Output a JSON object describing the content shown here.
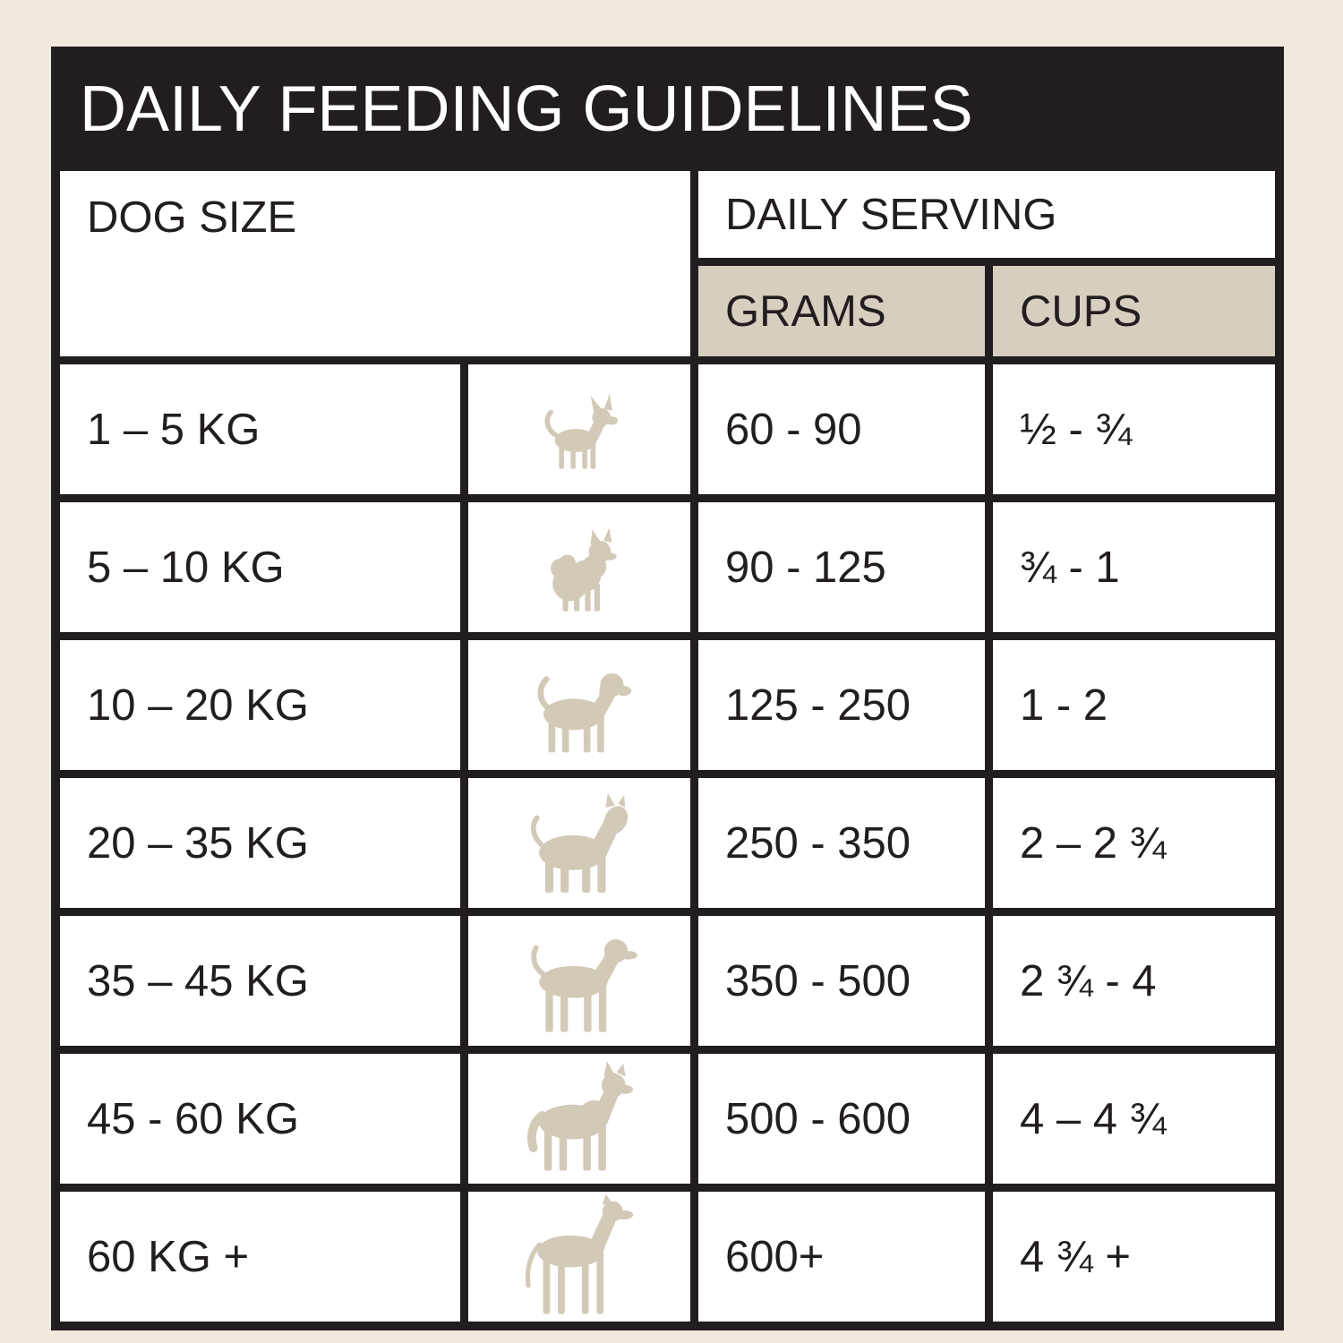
{
  "title": "DAILY FEEDING GUIDELINES",
  "columns": {
    "dog_size": "DOG SIZE",
    "daily_serving": "DAILY SERVING",
    "grams": "GRAMS",
    "cups": "CUPS"
  },
  "table": {
    "rows": [
      {
        "size": "1 – 5 KG",
        "icon": "chihuahua-dog-icon",
        "grams": "60 - 90",
        "cups": "½ - ¾"
      },
      {
        "size": "5 – 10 KG",
        "icon": "pomeranian-dog-icon",
        "grams": "90 - 125",
        "cups": "¾ - 1"
      },
      {
        "size": "10 – 20 KG",
        "icon": "beagle-dog-icon",
        "grams": "125 - 250",
        "cups": "1 - 2"
      },
      {
        "size": "20 – 35 KG",
        "icon": "bull-terrier-dog-icon",
        "grams": "250 - 350",
        "cups": "2 – 2 ¾"
      },
      {
        "size": "35 – 45 KG",
        "icon": "pointer-dog-icon",
        "grams": "350 - 500",
        "cups": "2 ¾ - 4"
      },
      {
        "size": "45 - 60 KG",
        "icon": "husky-dog-icon",
        "grams": "500 - 600",
        "cups": "4 – 4 ¾"
      },
      {
        "size": "60 KG +",
        "icon": "great-dane-dog-icon",
        "grams": "600+",
        "cups": "4 ¾ +"
      }
    ]
  },
  "colors": {
    "background": "#f0e9dd",
    "black": "#221e1f",
    "tan_header": "#d6cfc0",
    "dog_silhouette": "#d2cab7",
    "cell_white": "#ffffff",
    "title_text": "#ffffff"
  }
}
